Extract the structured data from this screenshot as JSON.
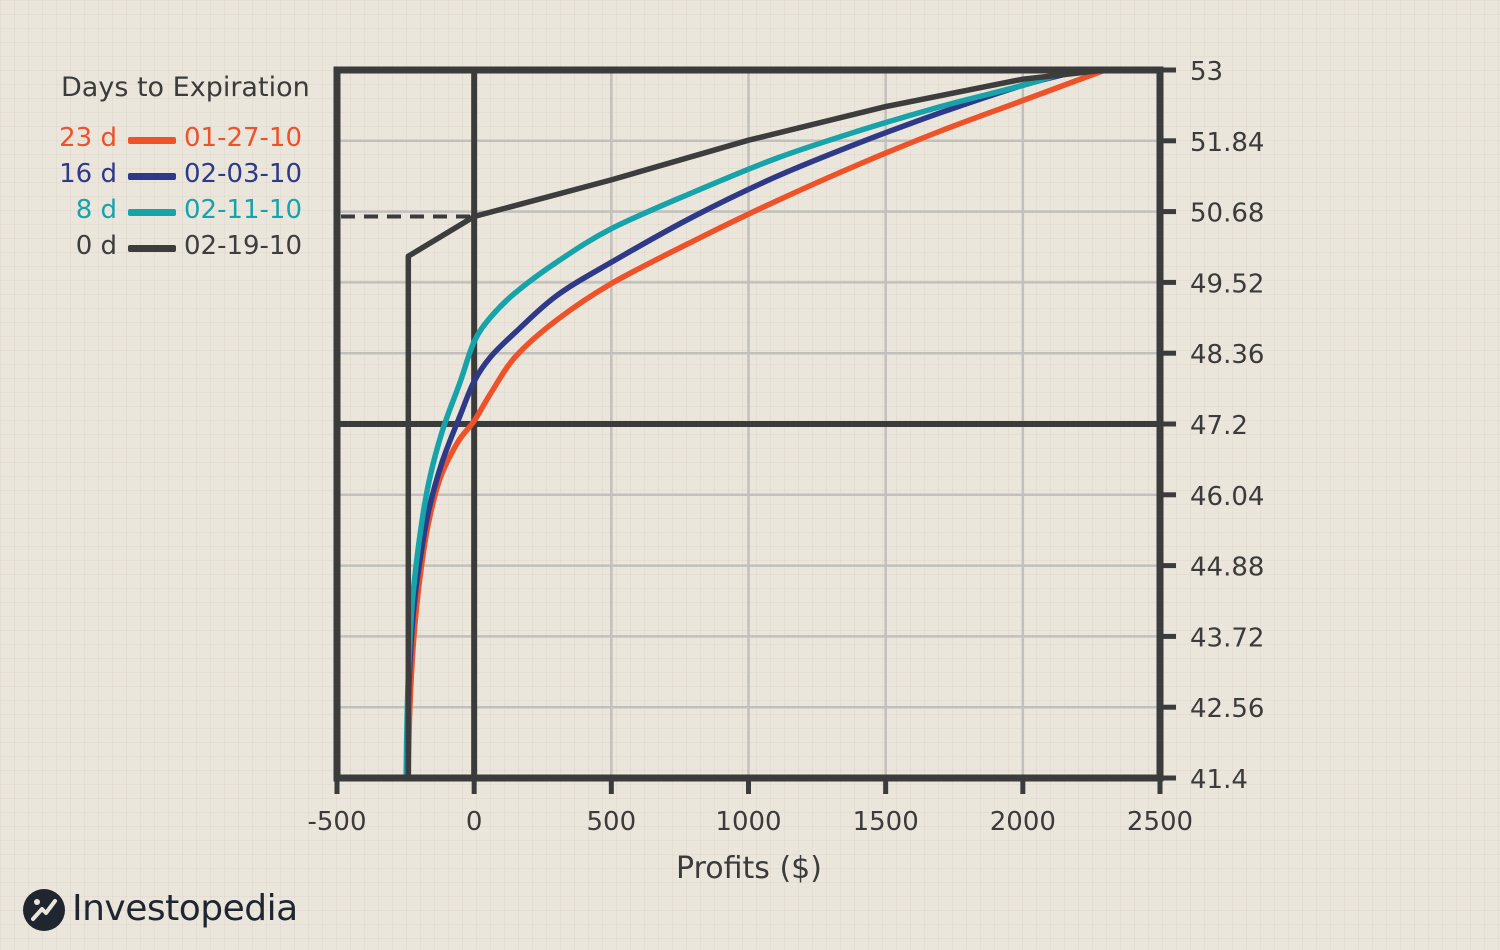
{
  "chart_data": {
    "type": "line",
    "orientation": "x-profit-y-price",
    "xlabel": "Profits ($)",
    "xlim": [
      -500,
      2500
    ],
    "x_ticks": [
      "-500",
      "0",
      "500",
      "1000",
      "1500",
      "2000",
      "2500"
    ],
    "ylim": [
      41.4,
      53
    ],
    "y_ticks": [
      "53",
      "51.84",
      "50.68",
      "49.52",
      "48.36",
      "47.2",
      "46.04",
      "44.88",
      "43.72",
      "42.56",
      "41.4"
    ],
    "y_axis_position": "right",
    "grid": true,
    "reference_lines": {
      "x": 0,
      "y": 47.2
    },
    "legend": {
      "title": "Days to Expiration",
      "position": "top-left",
      "entries": [
        {
          "days": "23 d",
          "date": "01-27-10",
          "color": "#ee5228"
        },
        {
          "days": "16 d",
          "date": "02-03-10",
          "color": "#2e3a87"
        },
        {
          "days": "8 d",
          "date": "02-11-10",
          "color": "#16a3aa"
        },
        {
          "days": "0 d",
          "date": "02-19-10",
          "color": "#3d3d3d"
        }
      ]
    },
    "series": [
      {
        "color": "#ee5228",
        "points": [
          [
            -240,
            41.4
          ],
          [
            -238,
            42.0
          ],
          [
            -232,
            42.8
          ],
          [
            -220,
            43.7
          ],
          [
            -200,
            44.6
          ],
          [
            -170,
            45.5
          ],
          [
            -125,
            46.3
          ],
          [
            -60,
            46.9
          ],
          [
            0,
            47.25
          ],
          [
            60,
            47.7
          ],
          [
            150,
            48.3
          ],
          [
            300,
            48.9
          ],
          [
            500,
            49.5
          ],
          [
            800,
            50.2
          ],
          [
            1100,
            50.85
          ],
          [
            1400,
            51.45
          ],
          [
            1700,
            52.0
          ],
          [
            2000,
            52.5
          ],
          [
            2300,
            53.0
          ]
        ]
      },
      {
        "color": "#2e3a87",
        "points": [
          [
            -245,
            41.4
          ],
          [
            -242,
            42.2
          ],
          [
            -236,
            43.1
          ],
          [
            -222,
            44.1
          ],
          [
            -200,
            44.9
          ],
          [
            -165,
            45.8
          ],
          [
            -115,
            46.6
          ],
          [
            -50,
            47.35
          ],
          [
            0,
            47.9
          ],
          [
            60,
            48.3
          ],
          [
            150,
            48.7
          ],
          [
            300,
            49.3
          ],
          [
            500,
            49.85
          ],
          [
            800,
            50.6
          ],
          [
            1100,
            51.25
          ],
          [
            1400,
            51.8
          ],
          [
            1700,
            52.3
          ],
          [
            2000,
            52.75
          ],
          [
            2220,
            53.0
          ]
        ]
      },
      {
        "color": "#16a3aa",
        "points": [
          [
            -248,
            41.4
          ],
          [
            -245,
            42.3
          ],
          [
            -238,
            43.3
          ],
          [
            -225,
            44.3
          ],
          [
            -200,
            45.3
          ],
          [
            -165,
            46.25
          ],
          [
            -115,
            47.1
          ],
          [
            -50,
            47.9
          ],
          [
            0,
            48.55
          ],
          [
            60,
            48.95
          ],
          [
            150,
            49.35
          ],
          [
            300,
            49.85
          ],
          [
            500,
            50.4
          ],
          [
            800,
            51.0
          ],
          [
            1100,
            51.55
          ],
          [
            1400,
            52.0
          ],
          [
            1700,
            52.4
          ],
          [
            2000,
            52.75
          ],
          [
            2180,
            53.0
          ]
        ]
      },
      {
        "color": "#3d3d3d",
        "points": [
          [
            -240,
            41.4
          ],
          [
            -240,
            49.95
          ],
          [
            0,
            50.6
          ],
          [
            500,
            51.2
          ],
          [
            1000,
            51.85
          ],
          [
            1500,
            52.4
          ],
          [
            2000,
            52.85
          ],
          [
            2300,
            53.0
          ]
        ]
      }
    ],
    "annotation": {
      "type": "dashed-horizontal",
      "y": 50.6,
      "x_from": -500,
      "x_to": 0
    }
  },
  "brand": {
    "name": "Investopedia",
    "logo_icon": "investopedia-mark-icon",
    "color": "#1f2630"
  }
}
